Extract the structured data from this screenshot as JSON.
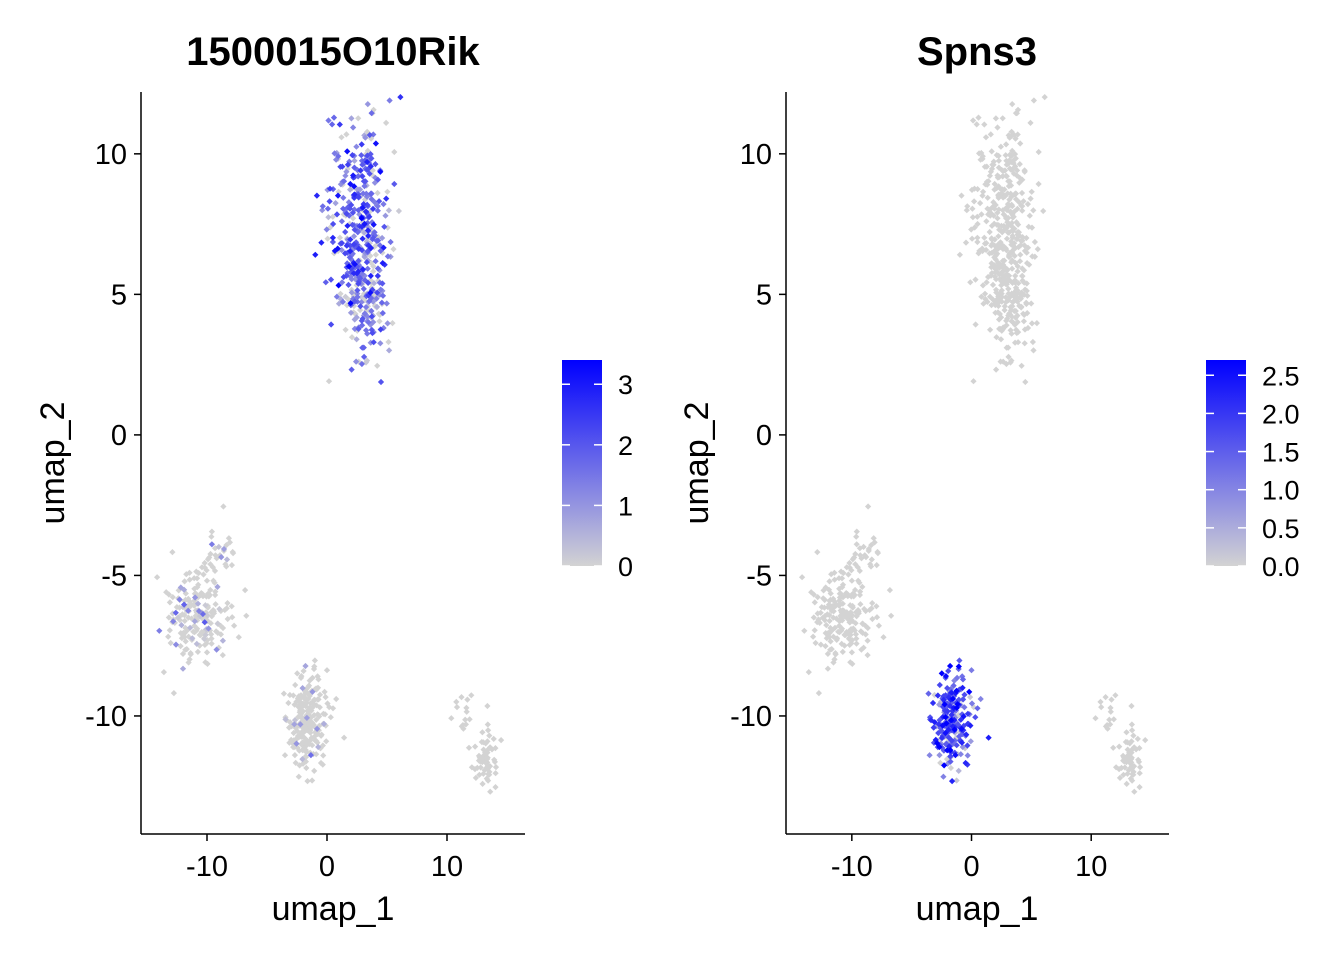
{
  "colors": {
    "low": "#d3d3d3",
    "high": "#0000ff",
    "axis": "#000000",
    "background": "#ffffff"
  },
  "chart_data": [
    {
      "type": "scatter",
      "title": "1500015O10Rik",
      "xlabel": "umap_1",
      "ylabel": "umap_2",
      "xlim": [
        -15.5,
        16.5
      ],
      "ylim": [
        -14.2,
        12.2
      ],
      "xticks": [
        "-10",
        "0",
        "10"
      ],
      "xtick_values": [
        -10,
        0,
        10
      ],
      "yticks": [
        "-10",
        "-5",
        "0",
        "5",
        "10"
      ],
      "ytick_values": [
        -10,
        -5,
        0,
        5,
        10
      ],
      "grid": false,
      "legend_placement": "right",
      "color_scale": {
        "min": 0,
        "max": 3.4,
        "ticks": [
          "0",
          "1",
          "2",
          "3"
        ],
        "tick_values": [
          0,
          1,
          2,
          3
        ]
      },
      "clusters": [
        {
          "cx": 2.6,
          "cy": 7.9,
          "sx": 1.3,
          "sy": 1.7,
          "n": 340,
          "expr_mean": 1.8,
          "expr_frac": 0.85
        },
        {
          "cx": 3.1,
          "cy": 4.6,
          "sx": 0.9,
          "sy": 1.0,
          "n": 160,
          "expr_mean": 1.4,
          "expr_frac": 0.7
        },
        {
          "cx": -10.8,
          "cy": -6.4,
          "sx": 1.3,
          "sy": 0.8,
          "n": 200,
          "expr_mean": 0.6,
          "expr_frac": 0.15
        },
        {
          "cx": -9.0,
          "cy": -4.3,
          "sx": 0.9,
          "sy": 0.6,
          "n": 30,
          "expr_mean": 0.6,
          "expr_frac": 0.15
        },
        {
          "cx": -1.7,
          "cy": -10.3,
          "sx": 0.8,
          "sy": 0.9,
          "n": 230,
          "expr_mean": 0.7,
          "expr_frac": 0.05
        },
        {
          "cx": 13.2,
          "cy": -11.4,
          "sx": 0.6,
          "sy": 0.6,
          "n": 60,
          "expr_mean": 0.2,
          "expr_frac": 0.0
        },
        {
          "cx": 11.6,
          "cy": -10.0,
          "sx": 0.5,
          "sy": 0.4,
          "n": 14,
          "expr_mean": 0.2,
          "expr_frac": 0.0
        }
      ]
    },
    {
      "type": "scatter",
      "title": "Spns3",
      "xlabel": "umap_1",
      "ylabel": "umap_2",
      "xlim": [
        -15.5,
        16.5
      ],
      "ylim": [
        -14.2,
        12.2
      ],
      "xticks": [
        "-10",
        "0",
        "10"
      ],
      "xtick_values": [
        -10,
        0,
        10
      ],
      "yticks": [
        "-10",
        "-5",
        "0",
        "5",
        "10"
      ],
      "ytick_values": [
        -10,
        -5,
        0,
        5,
        10
      ],
      "grid": false,
      "legend_placement": "right",
      "color_scale": {
        "min": 0,
        "max": 2.7,
        "ticks": [
          "0.0",
          "0.5",
          "1.0",
          "1.5",
          "2.0",
          "2.5"
        ],
        "tick_values": [
          0,
          0.5,
          1,
          1.5,
          2,
          2.5
        ]
      },
      "clusters": [
        {
          "cx": 2.6,
          "cy": 7.9,
          "sx": 1.3,
          "sy": 1.7,
          "n": 340,
          "expr_mean": 0,
          "expr_frac": 0
        },
        {
          "cx": 3.1,
          "cy": 4.6,
          "sx": 0.9,
          "sy": 1.0,
          "n": 160,
          "expr_mean": 0,
          "expr_frac": 0
        },
        {
          "cx": -10.8,
          "cy": -6.4,
          "sx": 1.3,
          "sy": 0.8,
          "n": 200,
          "expr_mean": 0,
          "expr_frac": 0
        },
        {
          "cx": -9.0,
          "cy": -4.3,
          "sx": 0.9,
          "sy": 0.6,
          "n": 30,
          "expr_mean": 0,
          "expr_frac": 0
        },
        {
          "cx": -1.7,
          "cy": -10.3,
          "sx": 0.8,
          "sy": 0.9,
          "n": 230,
          "expr_mean": 1.6,
          "expr_frac": 0.9
        },
        {
          "cx": 13.2,
          "cy": -11.4,
          "sx": 0.6,
          "sy": 0.6,
          "n": 60,
          "expr_mean": 0,
          "expr_frac": 0
        },
        {
          "cx": 11.6,
          "cy": -10.0,
          "sx": 0.5,
          "sy": 0.4,
          "n": 14,
          "expr_mean": 0,
          "expr_frac": 0
        }
      ]
    }
  ]
}
